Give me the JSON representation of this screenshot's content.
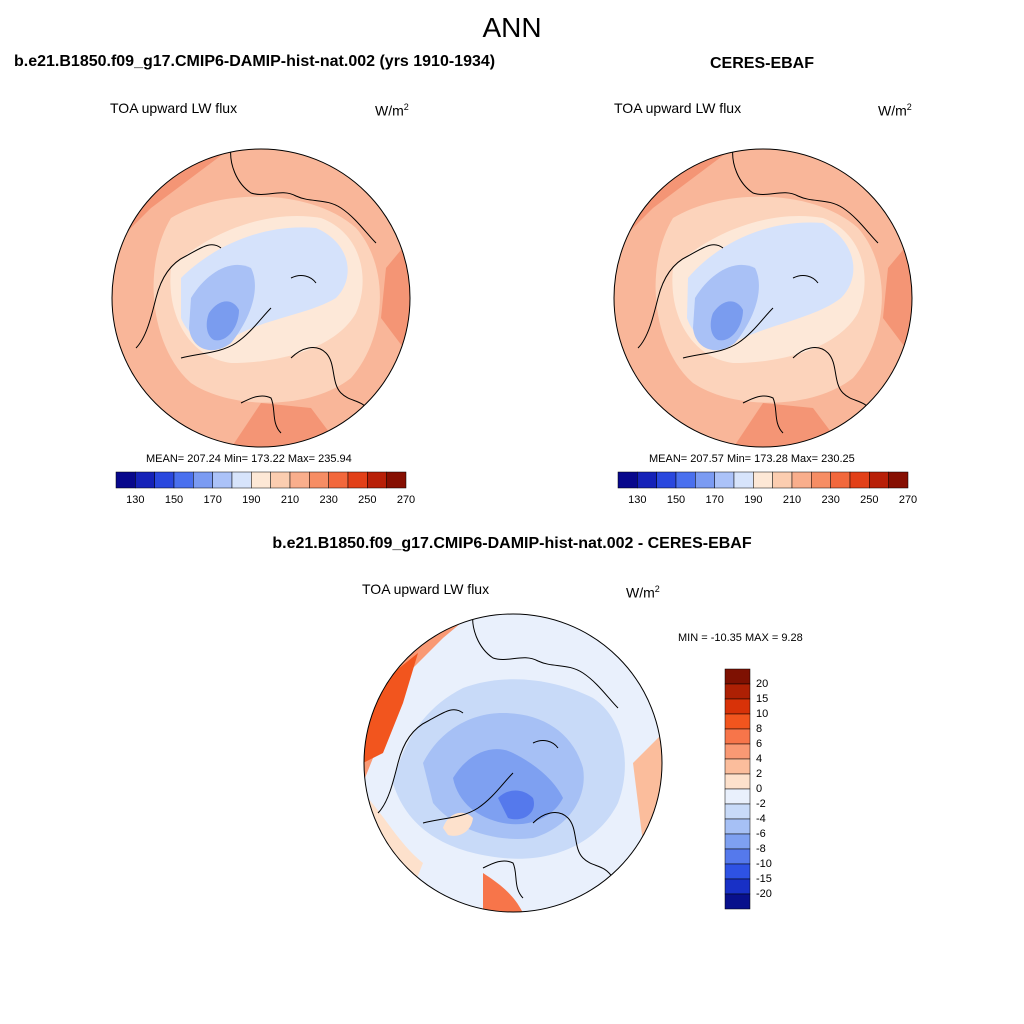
{
  "figure": {
    "title": "ANN",
    "diff_title": "b.e21.B1850.f09_g17.CMIP6-DAMIP-hist-nat.002 - CERES-EBAF"
  },
  "panels": [
    {
      "case_title": "b.e21.B1850.f09_g17.CMIP6-DAMIP-hist-nat.002 (yrs 1910-1934)",
      "variable": "TOA upward LW flux",
      "units_base": "W/m",
      "units_exp": "2",
      "stats": "MEAN= 207.24  Min= 173.22  Max= 235.94"
    },
    {
      "case_title": "CERES-EBAF",
      "variable": "TOA upward LW flux",
      "units_base": "W/m",
      "units_exp": "2",
      "stats": "MEAN= 207.57  Min= 173.28  Max= 230.25"
    },
    {
      "variable": "TOA upward LW flux",
      "units_base": "W/m",
      "units_exp": "2",
      "stats": "MIN = -10.35 MAX =   9.28"
    }
  ],
  "colorbar_main": {
    "colors": [
      "#08088c",
      "#1522b8",
      "#2a48de",
      "#4a70ee",
      "#7b9bf2",
      "#abc2f8",
      "#d7e4fb",
      "#fde8d6",
      "#fbcdb0",
      "#f9ae8c",
      "#f68d64",
      "#f2683c",
      "#e24018",
      "#b82008",
      "#860f02"
    ],
    "tick_labels": [
      "130",
      "150",
      "170",
      "190",
      "210",
      "230",
      "250",
      "270"
    ]
  },
  "colorbar_diff": {
    "colors": [
      "#7e1102",
      "#ad2004",
      "#d83208",
      "#f2551e",
      "#f7754a",
      "#f99974",
      "#fbbd9c",
      "#fde1cc",
      "#e9f0fc",
      "#c8daf8",
      "#a6c0f5",
      "#7ea0f1",
      "#5579ec",
      "#2e52e4",
      "#1830c6",
      "#08108c"
    ],
    "labels": [
      "20",
      "15",
      "10",
      "8",
      "6",
      "4",
      "2",
      "0",
      "-2",
      "-4",
      "-6",
      "-8",
      "-10",
      "-15",
      "-20"
    ]
  },
  "map_colors": {
    "warm_deep": "#f49575",
    "warm": "#f9b699",
    "warm_light": "#fcd3bb",
    "neutral": "#fde8d8",
    "cool_light": "#d5e2fb",
    "cool": "#a9c1f6",
    "cool_deep": "#7a9cef",
    "cool_deeper": "#5c82e8"
  }
}
